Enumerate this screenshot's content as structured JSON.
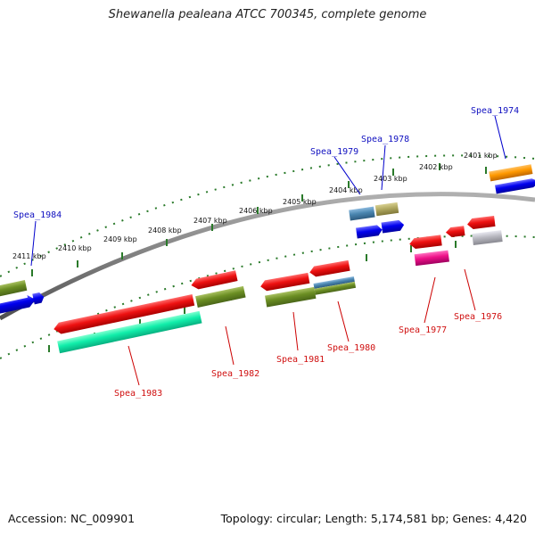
{
  "title": "Shewanella pealeana ATCC 700345, complete genome",
  "footer": {
    "accession": "Accession: NC_009901",
    "summary": "Topology: circular; Length: 5,174,581 bp; Genes: 4,420"
  },
  "scale_labels": [
    "2401 kbp",
    "2402 kbp",
    "2403 kbp",
    "2404 kbp",
    "2405 kbp",
    "2406 kbp",
    "2407 kbp",
    "2408 kbp",
    "2409 kbp",
    "2410 kbp",
    "2411 kbp"
  ],
  "forward_genes": [
    "Spea_1974",
    "Spea_1978",
    "Spea_1979",
    "Spea_1984"
  ],
  "reverse_genes": [
    "Spea_1976",
    "Spea_1977",
    "Spea_1980",
    "Spea_1981",
    "Spea_1982",
    "Spea_1983"
  ],
  "colors": {
    "forward_label": "#1010c0",
    "reverse_label": "#d01010",
    "backbone": "#808080",
    "scale_ticks": "#2a7a2a",
    "cds_red": "#ee1111",
    "cds_green": "#6b8e23",
    "cds_blue": "#0000ee",
    "cds_teal": "#4a86b0",
    "cds_khaki": "#b0a860",
    "cds_orange": "#ff9900",
    "cds_pink": "#ee1188",
    "cds_grey": "#b8b8c0",
    "cds_aqua": "#11eeaa"
  }
}
